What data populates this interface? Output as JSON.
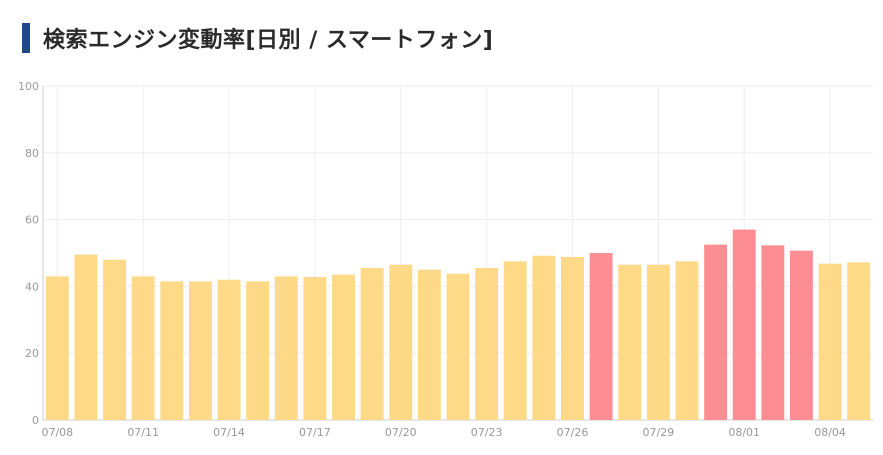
{
  "page": {
    "title": "検索エンジン変動率[日別 / スマートフォン]"
  },
  "colors": {
    "accent_bar": "#1f4a85",
    "normal_bar": "#fdd988",
    "high_bar": "#fc8e93",
    "grid": "#eeeeee",
    "axis": "#cfcfcf",
    "tick_text": "#999999"
  },
  "chart_data": {
    "type": "bar",
    "title": "",
    "xlabel": "",
    "ylabel": "",
    "ylim": [
      0,
      100
    ],
    "yticks": [
      0,
      20,
      40,
      60,
      80,
      100
    ],
    "grid": true,
    "legend": "none",
    "categories": [
      "07/08",
      "07/09",
      "07/10",
      "07/11",
      "07/12",
      "07/13",
      "07/14",
      "07/15",
      "07/16",
      "07/17",
      "07/18",
      "07/19",
      "07/20",
      "07/21",
      "07/22",
      "07/23",
      "07/24",
      "07/25",
      "07/26",
      "07/27",
      "07/28",
      "07/29",
      "07/30",
      "07/31",
      "08/01",
      "08/02",
      "08/03",
      "08/04",
      "08/05"
    ],
    "x_tick_labels": [
      "07/08",
      "07/11",
      "07/14",
      "07/17",
      "07/20",
      "07/23",
      "07/26",
      "07/29",
      "08/01",
      "08/04"
    ],
    "values": [
      43,
      49.5,
      48,
      43,
      41.5,
      41.5,
      42,
      41.5,
      43,
      42.8,
      43.5,
      45.5,
      46.5,
      45,
      43.8,
      45.5,
      47.5,
      49.2,
      48.8,
      50,
      46.5,
      46.5,
      47.5,
      52.5,
      57,
      52.3,
      50.7,
      46.8,
      47.2
    ],
    "highlight_indices": [
      19,
      23,
      24,
      25,
      26
    ]
  }
}
